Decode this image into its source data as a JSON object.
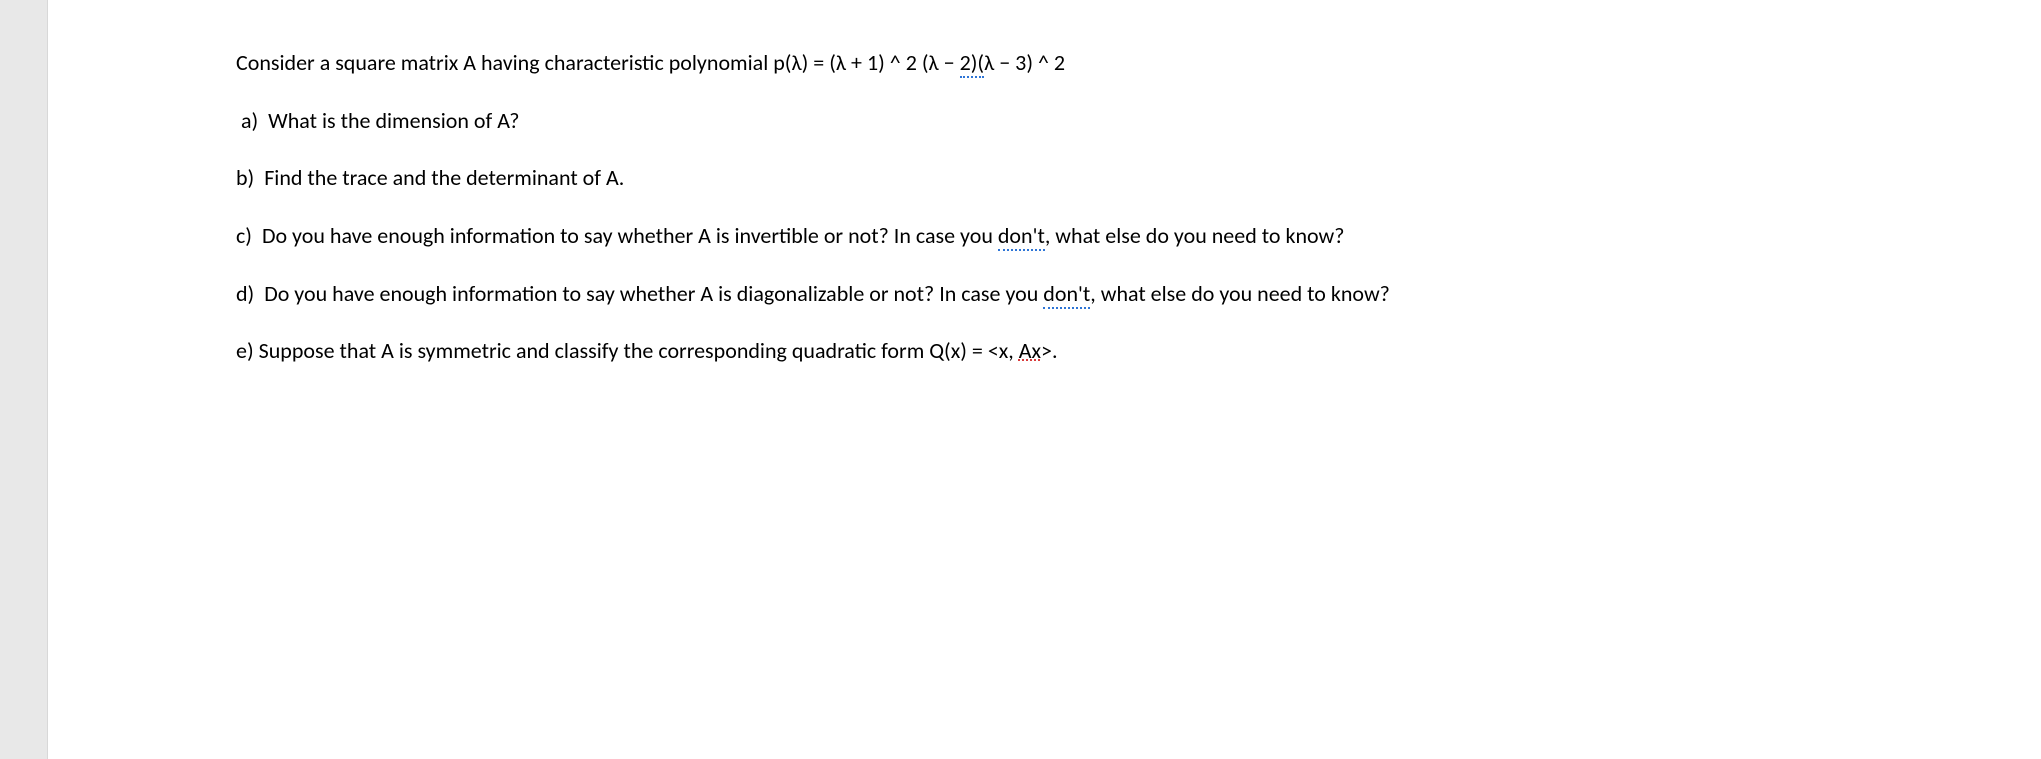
{
  "document": {
    "background_color": "#ffffff",
    "margin_color": "#e8e8e8",
    "text_color": "#000000",
    "font_size_pt": 16,
    "font_family": "Calibri",
    "spellcheck_blue_color": "#2e75d6",
    "spellcheck_red_color": "#d83b3b",
    "intro": {
      "prefix": "Consider a square matrix A having characteristic polynomial p(λ) = (λ + 1) ^ 2 (λ − ",
      "squiggle1": "2)(",
      "suffix": "λ − 3) ^ 2"
    },
    "part_a": {
      "label": "a)",
      "text": "What is the dimension of A?"
    },
    "part_b": {
      "label": "b)",
      "text": "Find the trace and the determinant of A."
    },
    "part_c": {
      "label": "c)",
      "prefix": "Do you have enough information to say whether A is invertible or not? In case you ",
      "squiggle": "don't",
      "mid": ", what else do you need to know?"
    },
    "part_d": {
      "label": "d)",
      "prefix": "Do you have enough information to say whether A is diagonalizable or not? In case you ",
      "squiggle": "don't",
      "mid": ", what else do you need to know?"
    },
    "part_e": {
      "label": "e)",
      "prefix": "Suppose that A is symmetric and classify the corresponding quadratic form Q(x) = <x, ",
      "squiggle": "Ax",
      "suffix": ">."
    }
  }
}
